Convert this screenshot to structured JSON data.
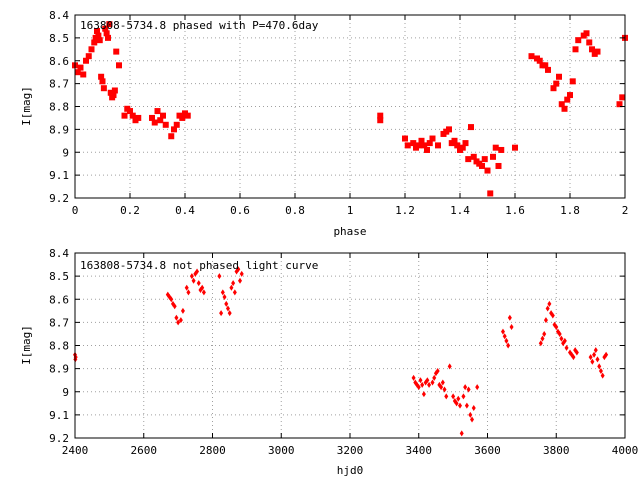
{
  "chart_data": [
    {
      "type": "scatter",
      "title": "163808-5734.8 phased with P=470.6day",
      "xlabel": "phase",
      "ylabel": "I[mag]",
      "xlim": [
        0,
        2
      ],
      "ylim": [
        9.2,
        8.4
      ],
      "y_inverted": true,
      "xticks": [
        "0",
        "0.2",
        "0.4",
        "0.6",
        "0.8",
        "1",
        "1.2",
        "1.4",
        "1.6",
        "1.8",
        "2"
      ],
      "yticks": [
        "8.4",
        "8.5",
        "8.6",
        "8.7",
        "8.8",
        "8.9",
        "9",
        "9.1",
        "9.2"
      ],
      "marker": "filled-square",
      "color": "#ff0000",
      "series": [
        {
          "x": [
            0.0,
            0.01,
            0.02,
            0.03,
            0.04,
            0.05,
            0.06,
            0.07,
            0.075,
            0.08,
            0.085,
            0.09,
            0.095,
            0.1,
            0.105,
            0.11,
            0.115,
            0.12,
            0.125,
            0.13,
            0.135,
            0.14,
            0.145,
            0.15,
            0.16,
            0.18,
            0.19,
            0.2,
            0.21,
            0.22,
            0.23,
            0.28,
            0.29,
            0.3,
            0.31,
            0.32,
            0.33,
            0.35,
            0.36,
            0.37,
            0.38,
            0.39,
            0.4,
            0.41,
            1.11,
            1.11,
            1.2,
            1.21,
            1.23,
            1.24,
            1.25,
            1.26,
            1.27,
            1.28,
            1.29,
            1.3,
            1.32,
            1.34,
            1.35,
            1.36,
            1.37,
            1.38,
            1.39,
            1.4,
            1.41,
            1.42,
            1.43,
            1.44,
            1.45,
            1.46,
            1.47,
            1.48,
            1.49,
            1.5,
            1.51,
            1.52,
            1.53,
            1.54,
            1.55,
            1.6,
            1.66,
            1.68,
            1.69,
            1.7,
            1.71,
            1.72,
            1.74,
            1.75,
            1.76,
            1.77,
            1.78,
            1.79,
            1.8,
            1.81,
            1.82,
            1.83,
            1.85,
            1.86,
            1.87,
            1.88,
            1.89,
            1.9,
            1.98,
            1.99,
            2.0
          ],
          "y": [
            8.62,
            8.65,
            8.63,
            8.66,
            8.6,
            8.58,
            8.55,
            8.52,
            8.5,
            8.47,
            8.49,
            8.51,
            8.67,
            8.69,
            8.72,
            8.46,
            8.48,
            8.5,
            8.44,
            8.74,
            8.76,
            8.75,
            8.73,
            8.56,
            8.62,
            8.84,
            8.81,
            8.82,
            8.84,
            8.86,
            8.85,
            8.85,
            8.87,
            8.82,
            8.86,
            8.84,
            8.88,
            8.93,
            8.9,
            8.88,
            8.84,
            8.85,
            8.83,
            8.84,
            8.84,
            8.86,
            8.94,
            8.97,
            8.96,
            8.98,
            8.97,
            8.95,
            8.97,
            8.99,
            8.96,
            8.94,
            8.97,
            8.92,
            8.91,
            8.9,
            8.96,
            8.95,
            8.97,
            8.99,
            8.98,
            8.96,
            9.03,
            8.89,
            9.02,
            9.04,
            9.05,
            9.06,
            9.03,
            9.08,
            9.18,
            9.02,
            8.98,
            9.06,
            8.99,
            8.98,
            8.58,
            8.59,
            8.6,
            8.62,
            8.62,
            8.64,
            8.72,
            8.7,
            8.67,
            8.79,
            8.81,
            8.77,
            8.75,
            8.69,
            8.55,
            8.51,
            8.49,
            8.48,
            8.52,
            8.55,
            8.57,
            8.56,
            8.79,
            8.76,
            8.5
          ]
        }
      ]
    },
    {
      "type": "scatter",
      "title": "163808-5734.8 not phased light curve",
      "xlabel": "hjd0",
      "ylabel": "I[mag]",
      "xlim": [
        2400,
        4000
      ],
      "ylim": [
        9.2,
        8.4
      ],
      "y_inverted": true,
      "xticks": [
        "2400",
        "2600",
        "2800",
        "3000",
        "3200",
        "3400",
        "3600",
        "3800",
        "4000"
      ],
      "yticks": [
        "8.4",
        "8.5",
        "8.6",
        "8.7",
        "8.8",
        "8.9",
        "9",
        "9.1",
        "9.2"
      ],
      "marker": "diamond",
      "color": "#ff0000",
      "series": [
        {
          "x": [
            2400,
            2401,
            2402,
            2670,
            2675,
            2680,
            2685,
            2690,
            2695,
            2700,
            2708,
            2714,
            2725,
            2730,
            2740,
            2745,
            2750,
            2755,
            2760,
            2765,
            2770,
            2775,
            2820,
            2825,
            2830,
            2835,
            2840,
            2845,
            2850,
            2855,
            2860,
            2865,
            2870,
            2875,
            2880,
            2885,
            3385,
            3390,
            3395,
            3400,
            3405,
            3410,
            3415,
            3420,
            3425,
            3430,
            3440,
            3445,
            3450,
            3455,
            3460,
            3465,
            3470,
            3475,
            3480,
            3490,
            3500,
            3505,
            3510,
            3515,
            3520,
            3525,
            3530,
            3535,
            3540,
            3545,
            3550,
            3555,
            3560,
            3570,
            3645,
            3650,
            3655,
            3660,
            3665,
            3670,
            3755,
            3760,
            3765,
            3770,
            3775,
            3780,
            3785,
            3790,
            3795,
            3800,
            3805,
            3810,
            3815,
            3820,
            3825,
            3830,
            3840,
            3845,
            3850,
            3855,
            3860,
            3900,
            3905,
            3910,
            3915,
            3920,
            3925,
            3930,
            3935,
            3940,
            3945
          ],
          "y": [
            8.84,
            8.86,
            8.85,
            8.58,
            8.59,
            8.6,
            8.62,
            8.63,
            8.68,
            8.7,
            8.69,
            8.65,
            8.55,
            8.57,
            8.5,
            8.52,
            8.49,
            8.48,
            8.53,
            8.56,
            8.55,
            8.57,
            8.5,
            8.66,
            8.57,
            8.59,
            8.62,
            8.64,
            8.66,
            8.55,
            8.53,
            8.57,
            8.48,
            8.47,
            8.52,
            8.49,
            8.94,
            8.96,
            8.97,
            8.98,
            8.95,
            8.97,
            9.01,
            8.96,
            8.95,
            8.97,
            8.96,
            8.94,
            8.92,
            8.91,
            8.97,
            8.98,
            8.96,
            8.99,
            9.02,
            8.89,
            9.02,
            9.04,
            9.05,
            9.03,
            9.06,
            9.18,
            9.02,
            8.98,
            9.06,
            8.99,
            9.1,
            9.12,
            9.07,
            8.98,
            8.74,
            8.76,
            8.78,
            8.8,
            8.68,
            8.72,
            8.79,
            8.77,
            8.75,
            8.69,
            8.64,
            8.62,
            8.66,
            8.67,
            8.71,
            8.72,
            8.74,
            8.75,
            8.77,
            8.79,
            8.78,
            8.81,
            8.83,
            8.84,
            8.85,
            8.82,
            8.83,
            8.85,
            8.87,
            8.84,
            8.82,
            8.86,
            8.89,
            8.91,
            8.93,
            8.85,
            8.84
          ]
        }
      ]
    }
  ]
}
